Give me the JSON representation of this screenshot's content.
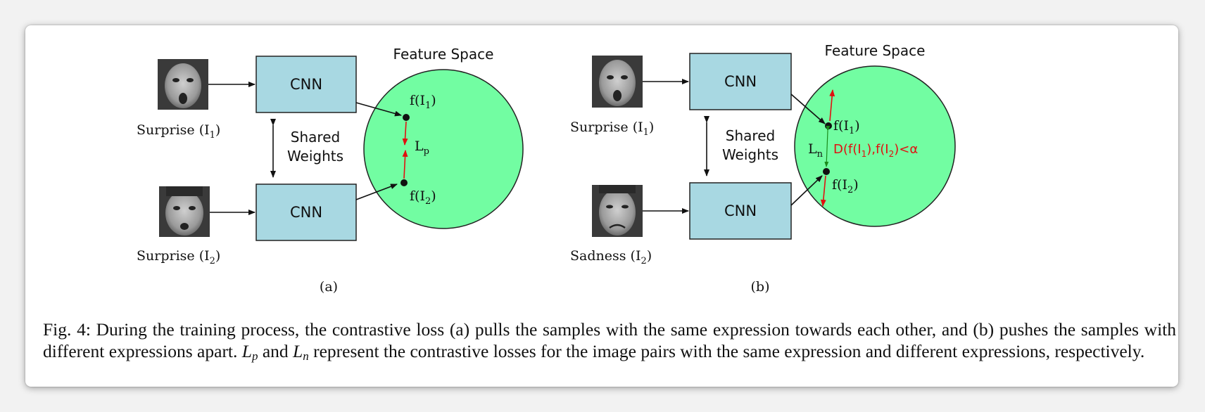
{
  "colors": {
    "cnn_fill": "#a8d8e2",
    "feature_space_fill": "#72fda2",
    "pull_arrow": "#e01010",
    "distance_arrow": "#1a8a1a",
    "loss_text_red": "#e01010"
  },
  "panel_a": {
    "feature_space_label": "Feature Space",
    "cnn_top_label": "CNN",
    "cnn_bottom_label": "CNN",
    "shared_weights_line1": "Shared",
    "shared_weights_line2": "Weights",
    "face_top_icon": "surprised-face-photo",
    "face_bottom_icon": "surprised-face-photo",
    "face_top_label": "Surprise (I",
    "face_top_sub": "1",
    "face_bottom_label": "Surprise (I",
    "face_bottom_sub": "2",
    "point1_label": "f(I",
    "point1_sub": "1",
    "point2_label": "f(I",
    "point2_sub": "2",
    "loss_label": "L",
    "loss_sub": "p",
    "panel_label": "(a)"
  },
  "panel_b": {
    "feature_space_label": "Feature Space",
    "cnn_top_label": "CNN",
    "cnn_bottom_label": "CNN",
    "shared_weights_line1": "Shared",
    "shared_weights_line2": "Weights",
    "face_top_icon": "surprised-face-photo",
    "face_bottom_icon": "sad-face-photo",
    "face_top_label": "Surprise (I",
    "face_top_sub": "1",
    "face_bottom_label": "Sadness (I",
    "face_bottom_sub": "2",
    "point1_label": "f(I",
    "point1_sub": "1",
    "point2_label": "f(I",
    "point2_sub": "2",
    "loss_label": "L",
    "loss_sub": "n",
    "margin_p1": "D(f(I",
    "margin_s1": "1",
    "margin_p2": "),f(I",
    "margin_s2": "2",
    "margin_p3": ")<α",
    "panel_label": "(b)"
  },
  "caption": {
    "text1": "Fig. 4: During the training process, the contrastive loss (a) pulls the samples with the same expression towards each other, and (b) pushes the samples with different expressions apart. ",
    "lp_main": "L",
    "lp_sub": "p",
    "text2": " and ",
    "ln_main": "L",
    "ln_sub": "n",
    "text3": " represent the contrastive losses for the image pairs with the same expression and different expressions, respectively."
  }
}
